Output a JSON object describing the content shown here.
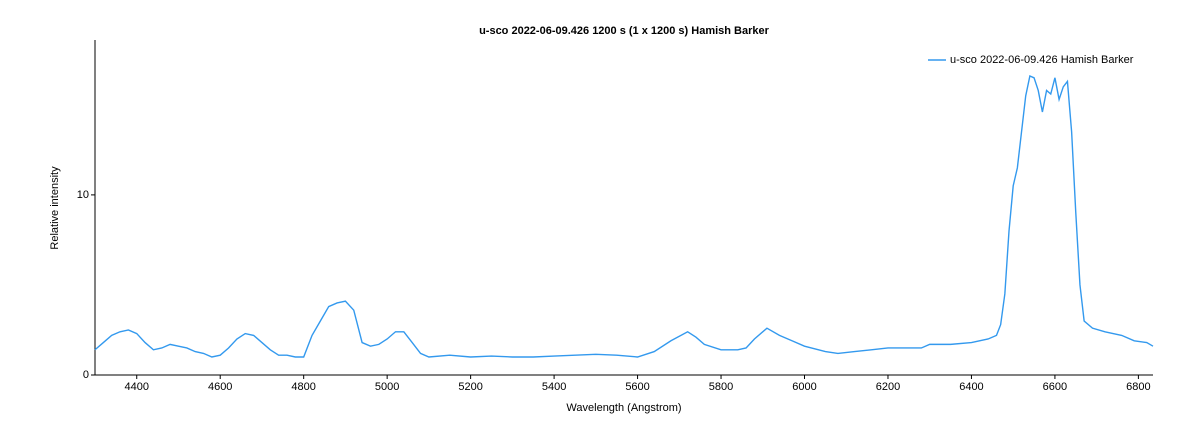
{
  "chart_data": {
    "type": "line",
    "title": "u-sco  2022-06-09.426  1200 s (1 x 1200 s)  Hamish Barker",
    "x_label": "Wavelength (Angstrom)",
    "y_label": "Relative intensity",
    "x": [
      4300,
      4320,
      4340,
      4360,
      4380,
      4400,
      4420,
      4440,
      4460,
      4480,
      4500,
      4520,
      4540,
      4560,
      4580,
      4600,
      4620,
      4640,
      4660,
      4680,
      4700,
      4720,
      4740,
      4760,
      4780,
      4800,
      4820,
      4840,
      4860,
      4880,
      4900,
      4920,
      4940,
      4960,
      4980,
      5000,
      5020,
      5040,
      5060,
      5080,
      5100,
      5150,
      5200,
      5250,
      5300,
      5350,
      5400,
      5450,
      5500,
      5550,
      5600,
      5640,
      5680,
      5720,
      5740,
      5760,
      5800,
      5840,
      5860,
      5880,
      5910,
      5940,
      5970,
      6000,
      6050,
      6080,
      6120,
      6160,
      6200,
      6240,
      6280,
      6300,
      6350,
      6400,
      6440,
      6460,
      6470,
      6480,
      6490,
      6500,
      6510,
      6520,
      6530,
      6540,
      6550,
      6560,
      6570,
      6580,
      6590,
      6600,
      6610,
      6620,
      6630,
      6640,
      6650,
      6660,
      6670,
      6690,
      6720,
      6760,
      6790,
      6820,
      6835
    ],
    "series": [
      {
        "name": "u-sco  2022-06-09.426  Hamish Barker",
        "color": "#3399ee",
        "values": [
          1.4,
          1.8,
          2.2,
          2.4,
          2.5,
          2.3,
          1.8,
          1.4,
          1.5,
          1.7,
          1.6,
          1.5,
          1.3,
          1.2,
          1.0,
          1.1,
          1.5,
          2.0,
          2.3,
          2.2,
          1.8,
          1.4,
          1.1,
          1.1,
          1.0,
          1.0,
          2.2,
          3.0,
          3.8,
          4.0,
          4.1,
          3.6,
          1.8,
          1.6,
          1.7,
          2.0,
          2.4,
          2.4,
          1.8,
          1.2,
          1.0,
          1.1,
          1.0,
          1.05,
          1.0,
          1.0,
          1.05,
          1.1,
          1.15,
          1.1,
          1.0,
          1.3,
          1.9,
          2.4,
          2.1,
          1.7,
          1.4,
          1.4,
          1.5,
          2.0,
          2.6,
          2.2,
          1.9,
          1.6,
          1.3,
          1.2,
          1.3,
          1.4,
          1.5,
          1.5,
          1.5,
          1.7,
          1.7,
          1.8,
          2.0,
          2.2,
          2.8,
          4.5,
          8.0,
          10.5,
          11.5,
          13.5,
          15.5,
          16.6,
          16.5,
          15.8,
          14.6,
          15.8,
          15.6,
          16.5,
          15.3,
          16.0,
          16.3,
          13.5,
          9.0,
          5.0,
          3.0,
          2.6,
          2.4,
          2.2,
          1.9,
          1.8,
          1.6
        ]
      }
    ],
    "xlim": [
      4300,
      6835
    ],
    "ylim": [
      0,
      18.6
    ],
    "xticks": [
      4400,
      4600,
      4800,
      5000,
      5200,
      5400,
      5600,
      5800,
      6000,
      6200,
      6400,
      6600,
      6800
    ],
    "yticks": [
      0,
      10
    ],
    "grid": false,
    "legend": "upper right"
  }
}
